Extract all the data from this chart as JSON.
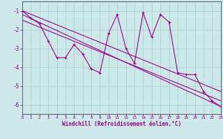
{
  "xlabel": "Windchill (Refroidissement éolien,°C)",
  "bg_color": "#cce8e8",
  "line_color": "#990099",
  "grid_color": "#aacccc",
  "axis_color": "#555577",
  "xlim": [
    0,
    23
  ],
  "ylim": [
    -6.5,
    -0.5
  ],
  "xticks": [
    0,
    1,
    2,
    3,
    4,
    5,
    6,
    7,
    8,
    9,
    10,
    11,
    12,
    13,
    14,
    15,
    16,
    17,
    18,
    19,
    20,
    21,
    22,
    23
  ],
  "yticks": [
    -1,
    -2,
    -3,
    -4,
    -5,
    -6
  ],
  "series1_x": [
    0,
    1,
    2,
    3,
    4,
    5,
    6,
    7,
    8,
    9,
    10,
    11,
    12,
    13,
    14,
    15,
    16,
    17,
    18,
    19,
    20,
    21,
    22,
    23
  ],
  "series1_y": [
    -1.0,
    -1.4,
    -1.7,
    -2.6,
    -3.5,
    -3.5,
    -2.8,
    -3.3,
    -4.1,
    -4.3,
    -2.2,
    -1.2,
    -3.0,
    -3.8,
    -1.1,
    -2.4,
    -1.2,
    -1.6,
    -4.3,
    -4.4,
    -4.4,
    -5.3,
    -5.8,
    -6.1
  ],
  "trend1_x": [
    0,
    23
  ],
  "trend1_y": [
    -1.0,
    -5.3
  ],
  "trend2_x": [
    0,
    23
  ],
  "trend2_y": [
    -1.2,
    -6.1
  ],
  "trend3_x": [
    0,
    23
  ],
  "trend3_y": [
    -1.5,
    -5.8
  ]
}
